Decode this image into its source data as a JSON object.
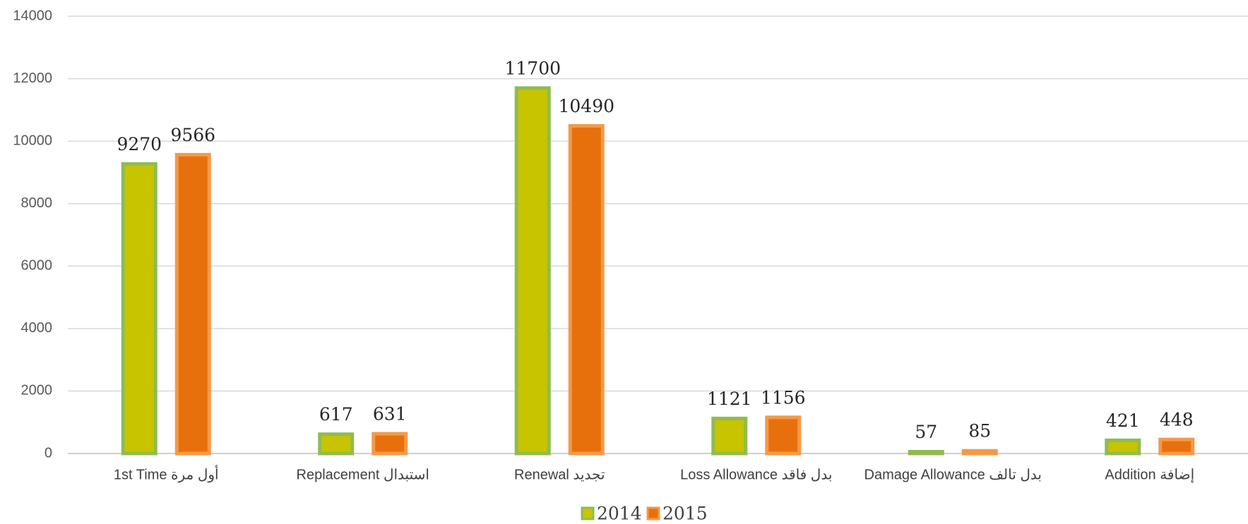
{
  "chart_data": {
    "type": "bar",
    "categories": [
      "1st Time أول مرة",
      "Replacement استبدال",
      "Renewal تجديد",
      "Loss Allowance بدل فاقد",
      "Damage Allowance بدل تالف",
      "Addition إضافة"
    ],
    "series": [
      {
        "name": "2014",
        "color": "#c8c400",
        "edge": "#8fbc50",
        "values": [
          9270,
          617,
          11700,
          1121,
          57,
          421
        ]
      },
      {
        "name": "2015",
        "color": "#e8700c",
        "edge": "#f39a4a",
        "values": [
          9566,
          631,
          10490,
          1156,
          85,
          448
        ]
      }
    ],
    "ylim": [
      0,
      14000
    ],
    "yticks": [
      0,
      2000,
      4000,
      6000,
      8000,
      10000,
      12000,
      14000
    ],
    "grid": true,
    "legend": "bottom"
  }
}
